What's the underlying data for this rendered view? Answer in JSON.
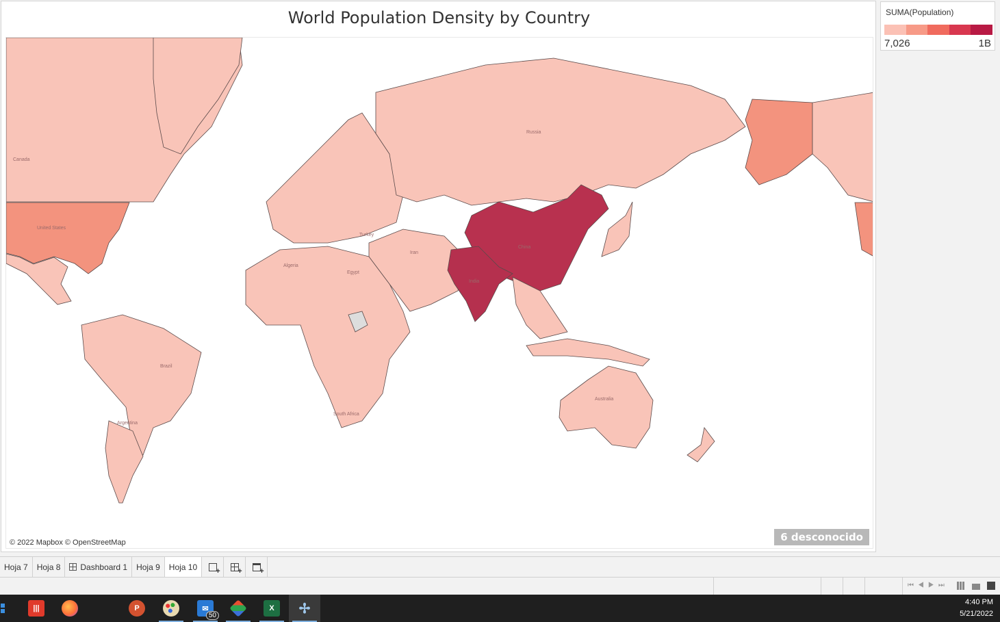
{
  "worksheet": {
    "title": "World Population Density by Country",
    "attribution": "© 2022 Mapbox © OpenStreetMap",
    "unknown_badge": "6 desconocido"
  },
  "legend": {
    "title": "SUMA(Population)",
    "min_label": "7,026",
    "max_label": "1B",
    "ramp_colors": [
      "#fbc1b5",
      "#f79a87",
      "#f06b5e",
      "#d8374f",
      "#b81a44"
    ]
  },
  "map_labels": {
    "canada": "Canada",
    "us": "United States",
    "russia": "Russia",
    "china": "China",
    "india": "India",
    "brazil": "Brazil",
    "australia": "Australia",
    "algeria": "Algeria",
    "egypt": "Egypt",
    "argentina": "Argentina",
    "iran": "Iran",
    "turkey": "Turkey",
    "south_africa": "South Africa"
  },
  "map_colors": {
    "low": "#f9c4b8",
    "us": "#f3937e",
    "china": "#b8314f",
    "india": "#b5304e",
    "unknown": "#dddddd",
    "land_stroke": "#5a4a4a"
  },
  "tabs": [
    {
      "label": "Hoja 7",
      "icon": ""
    },
    {
      "label": "Hoja 8",
      "icon": ""
    },
    {
      "label": "Dashboard 1",
      "icon": "dashboard-icon"
    },
    {
      "label": "Hoja 9",
      "icon": ""
    },
    {
      "label": "Hoja 10",
      "icon": "",
      "active": true
    }
  ],
  "new_sheet_icons": [
    "new-worksheet-icon",
    "new-dashboard-icon",
    "new-story-icon"
  ],
  "taskbar": {
    "mail_badge": "50",
    "time": "4:40 PM",
    "date": "5/21/2022",
    "apps": [
      "start-icon",
      "app-red-icon",
      "firefox-icon",
      "powerpoint-icon",
      "paint-icon",
      "mail-icon",
      "git-icon",
      "excel-icon",
      "tableau-icon"
    ]
  }
}
